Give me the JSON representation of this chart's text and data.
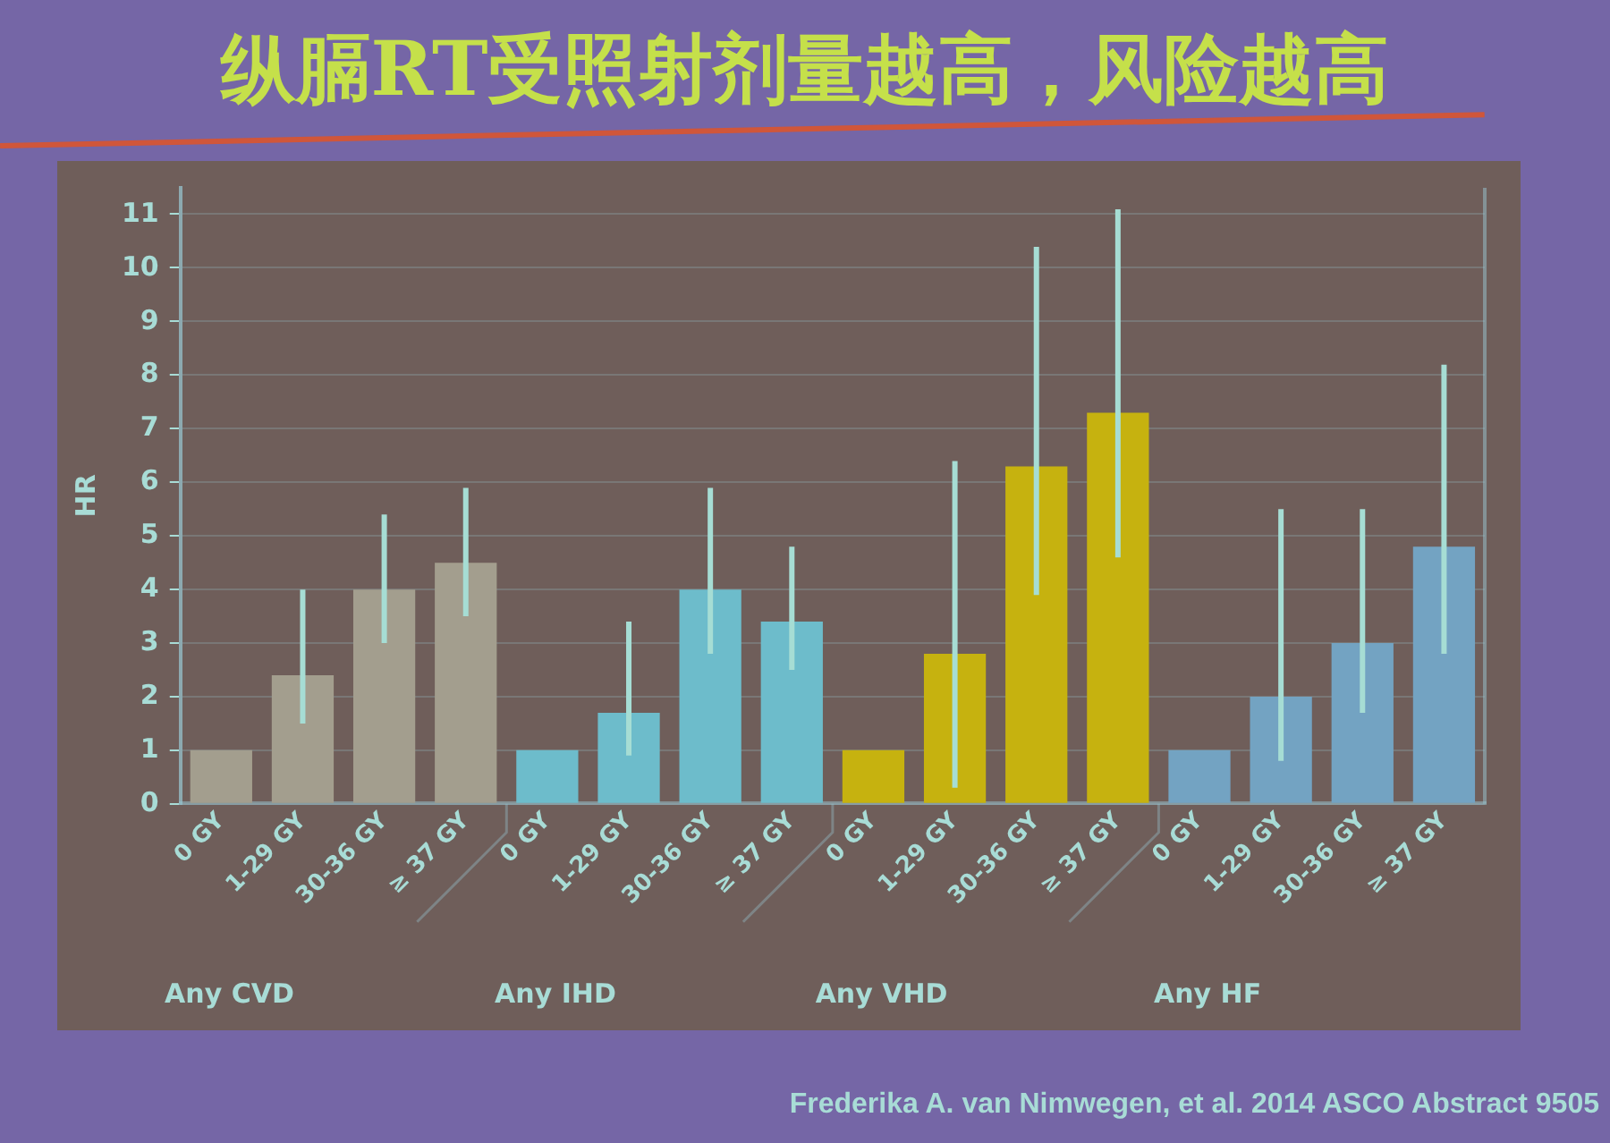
{
  "chart_data": {
    "type": "bar",
    "title": "纵膈RT受照射剂量越高，风险越高",
    "ylabel": "HR",
    "categories": [
      "0 GY",
      "1-29 GY",
      "30-36 GY",
      "≥ 37 GY",
      "0 GY",
      "1-29 GY",
      "30-36 GY",
      "≥ 37 GY",
      "0 GY",
      "1-29 GY",
      "30-36 GY",
      "≥ 37 GY",
      "0 GY",
      "1-29 GY",
      "30-36 GY",
      "≥ 37 GY"
    ],
    "values": [
      1.0,
      2.4,
      4.0,
      4.5,
      1.0,
      1.7,
      4.0,
      3.4,
      1.0,
      2.8,
      6.3,
      7.3,
      1.0,
      2.0,
      3.0,
      4.8
    ],
    "colors": [
      "#a39e8e",
      "#a39e8e",
      "#a39e8e",
      "#a39e8e",
      "#6dbccb",
      "#6dbccb",
      "#6dbccb",
      "#6dbccb",
      "#c6b20f",
      "#c6b20f",
      "#c6b20f",
      "#c6b20f",
      "#73a3c2",
      "#73a3c2",
      "#73a3c2",
      "#73a3c2"
    ],
    "errors": [
      null,
      [
        1.5,
        4.0
      ],
      [
        3.0,
        5.4
      ],
      [
        3.5,
        5.9
      ],
      null,
      [
        0.9,
        3.4
      ],
      [
        2.8,
        5.9
      ],
      [
        2.5,
        4.8
      ],
      null,
      [
        0.3,
        6.4
      ],
      [
        3.9,
        10.4
      ],
      [
        4.6,
        11.1
      ],
      null,
      [
        0.8,
        5.5
      ],
      [
        1.7,
        5.5
      ],
      [
        2.8,
        8.2
      ]
    ],
    "ylim": [
      0,
      11.5
    ],
    "yticks": [
      0,
      1,
      2,
      3,
      4,
      5,
      6,
      7,
      8,
      9,
      10,
      11
    ],
    "grid": "y",
    "annotations": [
      "Any CVD",
      "Any IHD",
      "Any VHD",
      "Any HF",
      "Frederika A. van Nimwegen, et al. 2014 ASCO Abstract 9505"
    ]
  }
}
